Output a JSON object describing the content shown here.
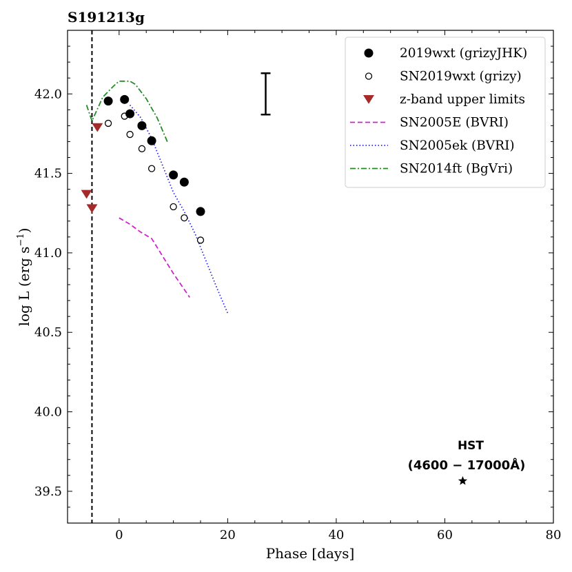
{
  "chart_data": {
    "type": "scatter",
    "title": "S191213g",
    "xlabel": "Phase [days]",
    "ylabel_main": "log L (erg s",
    "ylabel_sup": "−1",
    "ylabel_close": ")",
    "xlim": [
      -9.5,
      80
    ],
    "ylim": [
      39.3,
      42.4
    ],
    "x_ticks": [
      0,
      20,
      40,
      60,
      80
    ],
    "x_tick_labels": [
      "0",
      "20",
      "40",
      "60",
      "80"
    ],
    "y_ticks": [
      39.5,
      40.0,
      40.5,
      41.0,
      41.5,
      42.0
    ],
    "y_tick_labels": [
      "39.5",
      "40.0",
      "40.5",
      "41.0",
      "41.5",
      "42.0"
    ],
    "event_line_x": -5,
    "error_bar": {
      "x": 27,
      "y_low": 41.87,
      "y_high": 42.13
    },
    "hst": {
      "label_line1": "HST",
      "label_line2": "(4600 − 17000Å)",
      "x": 63.3,
      "y": 39.565
    },
    "series": [
      {
        "name": "2019wxt (grizyJHK)",
        "kind": "filled",
        "color": "#000000",
        "x": [
          -2,
          1,
          2,
          4.2,
          6,
          10,
          12,
          15
        ],
        "y": [
          41.955,
          41.965,
          41.875,
          41.8,
          41.705,
          41.49,
          41.445,
          41.26
        ]
      },
      {
        "name": "SN2019wxt (grizy)",
        "kind": "open",
        "color": "#000000",
        "x": [
          -2,
          1,
          2,
          4.2,
          6,
          10,
          12,
          15
        ],
        "y": [
          41.815,
          41.86,
          41.745,
          41.655,
          41.53,
          41.29,
          41.22,
          41.08
        ]
      },
      {
        "name": "z-band upper limits",
        "kind": "triangle",
        "color": "#a52a2a",
        "x": [
          -6,
          -5,
          -4
        ],
        "y": [
          41.37,
          41.28,
          41.79
        ]
      },
      {
        "name": "SN2005E (BVRI)",
        "kind": "dashed",
        "color": "#cc22cc",
        "x": [
          0,
          2,
          4,
          6,
          8,
          10,
          13
        ],
        "y": [
          41.22,
          41.18,
          41.13,
          41.09,
          40.98,
          40.87,
          40.72
        ]
      },
      {
        "name": "SN2005ek (BVRI)",
        "kind": "dotted",
        "color": "#2222ee",
        "x": [
          2,
          4,
          6,
          8,
          10,
          12,
          14,
          16,
          18,
          20
        ],
        "y": [
          41.93,
          41.85,
          41.72,
          41.55,
          41.38,
          41.26,
          41.12,
          40.95,
          40.78,
          40.62
        ]
      },
      {
        "name": "SN2014ft (BgVri)",
        "kind": "dashdot",
        "color": "#228b22",
        "x": [
          -6,
          -5,
          -3,
          -1,
          0,
          2,
          3,
          5,
          7,
          9
        ],
        "y": [
          41.93,
          41.83,
          41.98,
          42.05,
          42.08,
          42.08,
          42.06,
          41.97,
          41.85,
          41.69
        ]
      }
    ],
    "legend_position": "top-right"
  }
}
